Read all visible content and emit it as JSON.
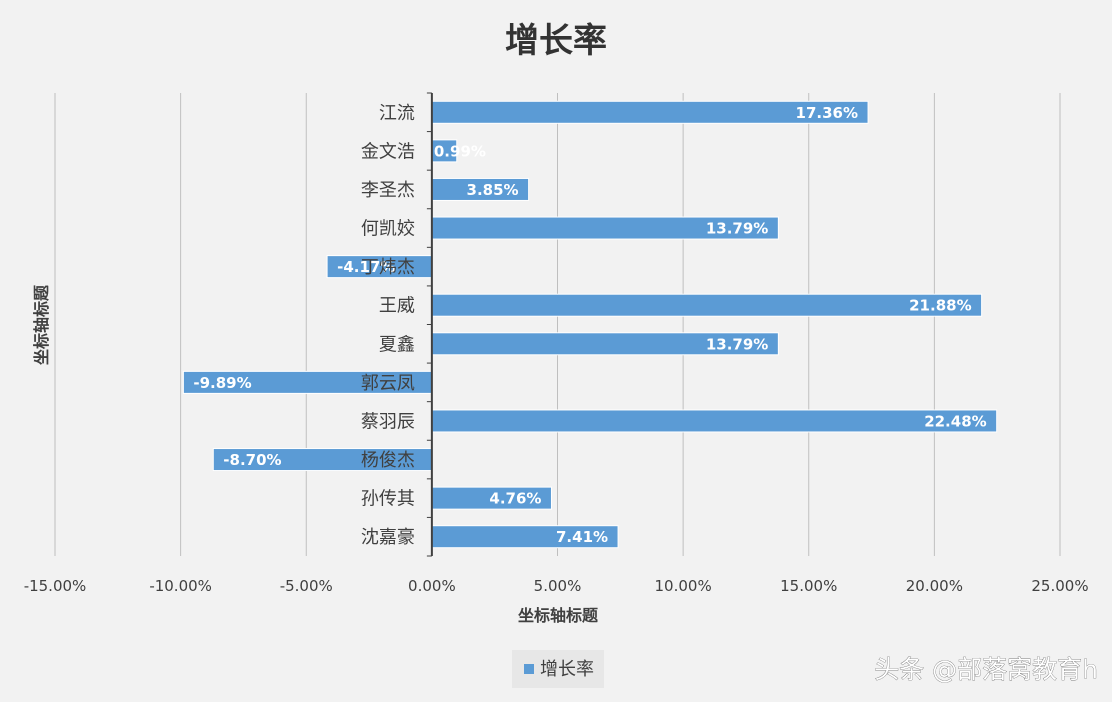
{
  "chart_data": {
    "type": "bar",
    "orientation": "horizontal",
    "title": "增长率",
    "xlabel": "坐标轴标题",
    "ylabel": "坐标轴标题",
    "categories": [
      "江流",
      "金文浩",
      "李圣杰",
      "何凯姣",
      "丁炜杰",
      "王威",
      "夏鑫",
      "郭云凤",
      "蔡羽辰",
      "杨俊杰",
      "孙传其",
      "沈嘉豪"
    ],
    "series": [
      {
        "name": "增长率",
        "values": [
          17.36,
          0.99,
          3.85,
          13.79,
          -4.17,
          21.88,
          13.79,
          -9.89,
          22.48,
          -8.7,
          4.76,
          7.41
        ],
        "labels": [
          "17.36%",
          "0.99%",
          "3.85%",
          "13.79%",
          "-4.17%",
          "21.88%",
          "13.79%",
          "-9.89%",
          "22.48%",
          "-8.70%",
          "4.76%",
          "7.41%"
        ],
        "color": "#5b9bd5"
      }
    ],
    "xlim": [
      -15,
      25
    ],
    "xticks": [
      -15,
      -10,
      -5,
      0,
      5,
      10,
      15,
      20,
      25
    ],
    "xtick_labels": [
      "-15.00%",
      "-10.00%",
      "-5.00%",
      "0.00%",
      "5.00%",
      "10.00%",
      "15.00%",
      "20.00%",
      "25.00%"
    ],
    "grid": true,
    "legend_position": "bottom"
  },
  "watermark": "头条 @部落窝教育h",
  "colors": {
    "background": "#f2f2f2",
    "bar": "#5b9bd5",
    "grid": "#bfbfbf",
    "axis": "#404040",
    "text": "#404040"
  }
}
